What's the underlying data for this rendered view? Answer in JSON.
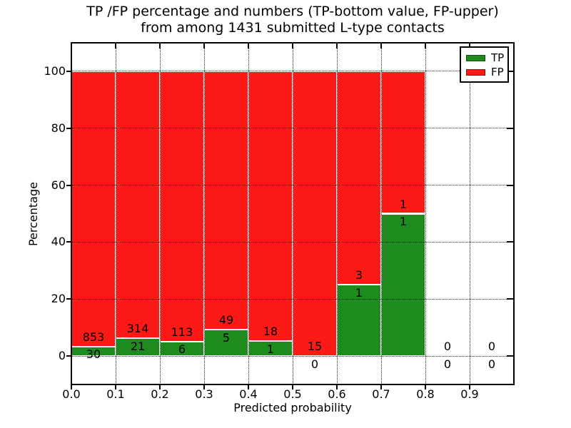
{
  "title": {
    "line1": "TP /FP percentage and numbers (TP-bottom value, FP-upper)",
    "line2": "from among 1431 submitted L-type contacts"
  },
  "chart_data": {
    "type": "bar",
    "subtype": "stacked-percentage-histogram",
    "title": "TP /FP percentage and numbers (TP-bottom value, FP-upper)\nfrom among 1431 submitted L-type contacts",
    "xlabel": "Predicted probability",
    "ylabel": "Percentage",
    "total_contacts": 1431,
    "xlim": [
      0.0,
      1.0
    ],
    "ylim": [
      -10,
      110
    ],
    "grid": true,
    "x_tick_labels": [
      "0.0",
      "0.1",
      "0.2",
      "0.3",
      "0.4",
      "0.5",
      "0.6",
      "0.7",
      "0.8",
      "0.9"
    ],
    "y_tick_values": [
      0,
      20,
      40,
      60,
      80,
      100
    ],
    "y_tick_labels": [
      "0",
      "20",
      "40",
      "60",
      "80",
      "100"
    ],
    "categories": [
      "0.0-0.1",
      "0.1-0.2",
      "0.2-0.3",
      "0.3-0.4",
      "0.4-0.5",
      "0.5-0.6",
      "0.6-0.7",
      "0.7-0.8",
      "0.8-0.9",
      "0.9-1.0"
    ],
    "series": [
      {
        "name": "TP",
        "color": "#1e8b1e",
        "counts": [
          30,
          21,
          6,
          5,
          1,
          0,
          1,
          1,
          0,
          0
        ]
      },
      {
        "name": "FP",
        "color": "#fb1a15",
        "counts": [
          853,
          314,
          113,
          49,
          18,
          15,
          3,
          1,
          0,
          0
        ]
      }
    ],
    "bar_label_rule": "FP count printed above TP/FP boundary, TP count printed below boundary",
    "legend": {
      "position": "upper-right",
      "entries": [
        {
          "label": "TP",
          "color": "#1e8b1e"
        },
        {
          "label": "FP",
          "color": "#fb1a15"
        }
      ]
    }
  }
}
